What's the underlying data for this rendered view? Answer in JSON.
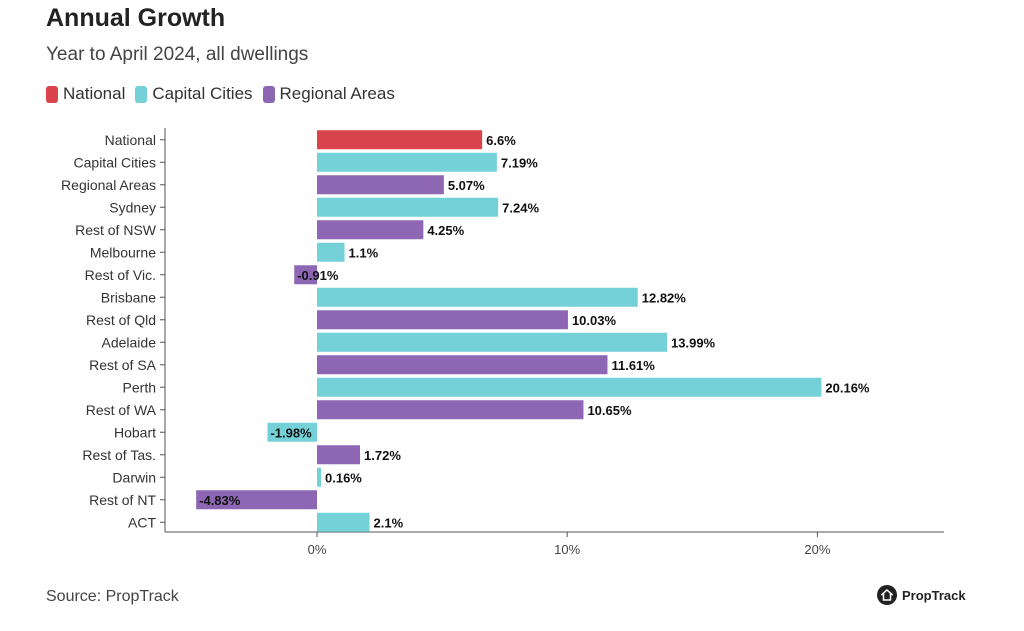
{
  "header": {
    "title": "Annual Growth",
    "subtitle": "Year to April 2024, all dwellings"
  },
  "legend": [
    {
      "label": "National",
      "color": "#d9434b"
    },
    {
      "label": "Capital Cities",
      "color": "#74d1d8"
    },
    {
      "label": "Regional Areas",
      "color": "#8d67b3"
    }
  ],
  "footer": {
    "source": "Source: PropTrack",
    "brand": "PropTrack"
  },
  "chart_data": {
    "type": "bar",
    "orientation": "horizontal",
    "title": "Annual Growth",
    "subtitle": "Year to April 2024, all dwellings",
    "xlabel": "",
    "ylabel": "",
    "xlim": [
      -6,
      25
    ],
    "xticks": [
      0,
      10,
      20
    ],
    "xtick_labels": [
      "0%",
      "10%",
      "20%"
    ],
    "categories": [
      "National",
      "Capital Cities",
      "Regional Areas",
      "Sydney",
      "Rest of NSW",
      "Melbourne",
      "Rest of Vic.",
      "Brisbane",
      "Rest of Qld",
      "Adelaide",
      "Rest of SA",
      "Perth",
      "Rest of WA",
      "Hobart",
      "Rest of Tas.",
      "Darwin",
      "Rest of NT",
      "ACT"
    ],
    "values": [
      6.6,
      7.19,
      5.07,
      7.24,
      4.25,
      1.1,
      -0.91,
      12.82,
      10.03,
      13.99,
      11.61,
      20.16,
      10.65,
      -1.98,
      1.72,
      0.16,
      -4.83,
      2.1
    ],
    "value_labels": [
      "6.6%",
      "7.19%",
      "5.07%",
      "7.24%",
      "4.25%",
      "1.1%",
      "-0.91%",
      "12.82%",
      "10.03%",
      "13.99%",
      "11.61%",
      "20.16%",
      "10.65%",
      "-1.98%",
      "1.72%",
      "0.16%",
      "-4.83%",
      "2.1%"
    ],
    "groups": [
      "National",
      "Capital Cities",
      "Regional Areas",
      "Capital Cities",
      "Regional Areas",
      "Capital Cities",
      "Regional Areas",
      "Capital Cities",
      "Regional Areas",
      "Capital Cities",
      "Regional Areas",
      "Capital Cities",
      "Regional Areas",
      "Capital Cities",
      "Regional Areas",
      "Capital Cities",
      "Regional Areas",
      "Capital Cities"
    ],
    "legend_position": "top-left",
    "grid": false
  }
}
